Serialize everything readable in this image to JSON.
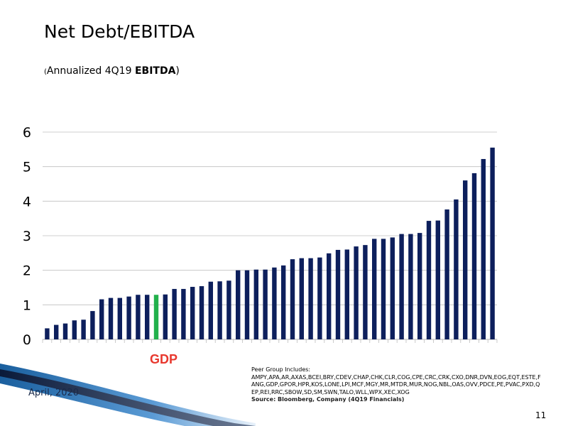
{
  "slide": {
    "title": "Net Debt/EBITDA",
    "subtitle_paren": "(",
    "subtitle_text": "Annualized 4Q19 ",
    "subtitle_bold": "EBITDA",
    "subtitle_close": ")",
    "highlight_label": "GDP",
    "peer_group_heading": "Peer Group Includes:",
    "peer_group_list": "AMPY,APA,AR,AXAS,BCEI,BRY,CDEV,CHAP,CHK,CLR,COG,CPE,CRC,CRK,CXO,DNR,DVN,EOG,EQT,ESTE,FANG,GDP,GPOR,HPR,KOS,LONE,LPI,MCF,MGY,MR,MTDR,MUR,NOG,NBL,OAS,OVV,PDCE,PE,PVAC,PXD,QEP,REI,RRC,SBOW,SD,SM,SWN,TALO,WLL,WPX,XEC,XOG",
    "source": "Source: Bloomberg, Company (4Q19 Financials)",
    "date": "April, 2020",
    "page_number": "11"
  },
  "colors": {
    "bar": "#0d1f5c",
    "highlight_bar": "#22b14c",
    "highlight_label": "#e8382e",
    "gridline": "#bfbfbf"
  },
  "chart_data": {
    "type": "bar",
    "title": "Net Debt/EBITDA",
    "xlabel": "",
    "ylabel": "",
    "ylim": [
      0,
      6
    ],
    "yticks": [
      0,
      1,
      2,
      3,
      4,
      5,
      6
    ],
    "grid": true,
    "highlight_index": 12,
    "values": [
      0.32,
      0.42,
      0.46,
      0.55,
      0.57,
      0.82,
      1.16,
      1.2,
      1.2,
      1.24,
      1.29,
      1.29,
      1.29,
      1.3,
      1.46,
      1.46,
      1.52,
      1.54,
      1.67,
      1.68,
      1.7,
      2.0,
      2.0,
      2.02,
      2.02,
      2.08,
      2.14,
      2.32,
      2.35,
      2.35,
      2.37,
      2.49,
      2.59,
      2.6,
      2.69,
      2.73,
      2.91,
      2.91,
      2.95,
      3.05,
      3.05,
      3.08,
      3.43,
      3.44,
      3.76,
      4.05,
      4.6,
      4.81,
      5.22,
      5.55
    ]
  }
}
